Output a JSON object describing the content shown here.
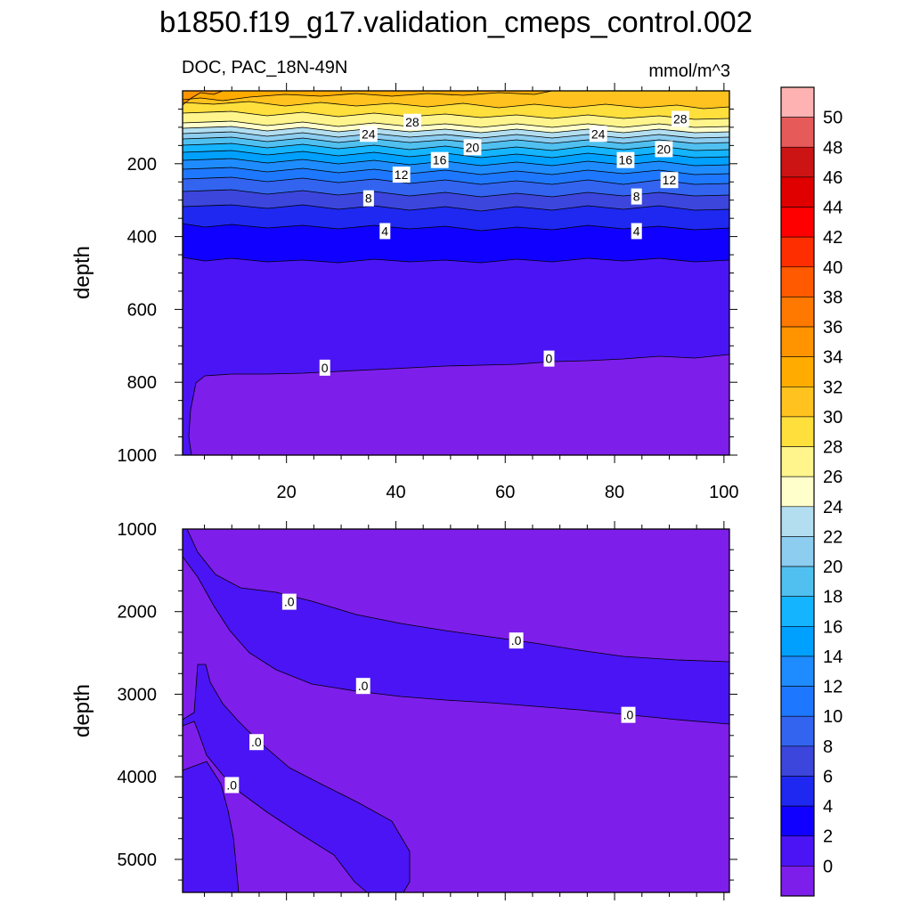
{
  "figure": {
    "title": "b1850.f19_g17.validation_cmeps_control.002",
    "left_string": "DOC, PAC_18N-49N",
    "right_string": "mmol/m^3"
  },
  "colorbar": {
    "labels": [
      "50",
      "48",
      "46",
      "44",
      "42",
      "40",
      "38",
      "36",
      "34",
      "32",
      "30",
      "28",
      "26",
      "24",
      "22",
      "20",
      "18",
      "16",
      "14",
      "12",
      "10",
      "8",
      "6",
      "4",
      "2",
      "0"
    ],
    "colors_top_to_bottom": [
      "#ffb2b2",
      "#e65a5a",
      "#cc1414",
      "#e00000",
      "#ff0000",
      "#ff2e00",
      "#ff5a00",
      "#ff7800",
      "#ff9400",
      "#ffab00",
      "#ffc21e",
      "#ffdf3c",
      "#fff58c",
      "#ffffcc",
      "#b2def0",
      "#8ccdf0",
      "#50c0f0",
      "#14b4ff",
      "#00a0ff",
      "#1e8cff",
      "#1e78ff",
      "#3264f0",
      "#3c46dc",
      "#1e28f0",
      "#1000ff",
      "#4b14f5",
      "#7d1eeb"
    ]
  },
  "chart_data": [
    {
      "type": "contour",
      "panel": "upper",
      "xlabel": "",
      "ylabel": "depth",
      "xlim": [
        1,
        101
      ],
      "ylim": [
        1000,
        0
      ],
      "x_ticks": [
        20,
        40,
        60,
        80,
        100
      ],
      "y_ticks": [
        200,
        400,
        600,
        800,
        1000
      ],
      "contour_labels": [
        {
          "text": "28",
          "x": 43,
          "y": 85
        },
        {
          "text": "28",
          "x": 92,
          "y": 77
        },
        {
          "text": "24",
          "x": 35,
          "y": 118
        },
        {
          "text": "24",
          "x": 77,
          "y": 118
        },
        {
          "text": "20",
          "x": 54,
          "y": 155
        },
        {
          "text": "20",
          "x": 89,
          "y": 160
        },
        {
          "text": "16",
          "x": 48,
          "y": 190
        },
        {
          "text": "16",
          "x": 82,
          "y": 190
        },
        {
          "text": "12",
          "x": 41,
          "y": 230
        },
        {
          "text": "12",
          "x": 90,
          "y": 245
        },
        {
          "text": "8",
          "x": 35,
          "y": 295
        },
        {
          "text": "8",
          "x": 84,
          "y": 290
        },
        {
          "text": "4",
          "x": 38,
          "y": 385
        },
        {
          "text": "4",
          "x": 84,
          "y": 385
        },
        {
          "text": "0",
          "x": 27,
          "y": 760
        },
        {
          "text": "0",
          "x": 68,
          "y": 735
        }
      ]
    },
    {
      "type": "contour",
      "panel": "lower",
      "xlabel": "",
      "ylabel": "depth",
      "xlim": [
        1,
        101
      ],
      "ylim": [
        5400,
        1000
      ],
      "y_ticks": [
        1000,
        2000,
        3000,
        4000,
        5000
      ],
      "contour_labels": [
        {
          "text": ".0",
          "x": 20.5,
          "y": 1880
        },
        {
          "text": ".0",
          "x": 62,
          "y": 2350
        },
        {
          "text": ".0",
          "x": 34,
          "y": 2900
        },
        {
          "text": ".0",
          "x": 82.5,
          "y": 3250
        },
        {
          "text": ".0",
          "x": 14.5,
          "y": 3580
        },
        {
          "text": ".0",
          "x": 10,
          "y": 4100
        }
      ]
    }
  ]
}
